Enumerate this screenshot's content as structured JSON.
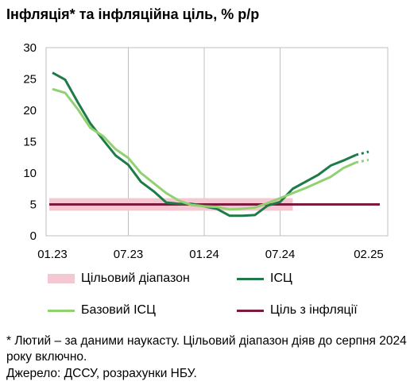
{
  "title": "Інфляція* та інфляційна ціль, % р/р",
  "legend": {
    "band": "Цільовий діапазон",
    "cpi": "ІСЦ",
    "core": "Базовий ІСЦ",
    "target": "Ціль з інфляції"
  },
  "note": "* Лютий – за даними наукасту. Цільовий діапазон діяв до серпня 2024 року включно.",
  "source": "Джерело: ДССУ, розрахунки НБУ.",
  "colors": {
    "cpi": "#1e7b47",
    "core": "#92d172",
    "band": "#f4c7d2",
    "target": "#7b1c3e"
  },
  "chart_data": {
    "type": "line",
    "x": [
      "01.23",
      "02.23",
      "03.23",
      "04.23",
      "05.23",
      "06.23",
      "07.23",
      "08.23",
      "09.23",
      "10.23",
      "11.23",
      "12.23",
      "01.24",
      "02.24",
      "03.24",
      "04.24",
      "05.24",
      "06.24",
      "07.24",
      "08.24",
      "09.24",
      "10.24",
      "11.24",
      "12.24",
      "01.25",
      "02.25"
    ],
    "x_ticks": [
      "01.23",
      "07.23",
      "01.24",
      "07.24",
      "02.25"
    ],
    "y_ticks": [
      "0",
      "5",
      "10",
      "15",
      "20",
      "25",
      "30"
    ],
    "ylim": [
      0,
      30
    ],
    "grid": "vertical",
    "series": [
      {
        "name": "ІСЦ",
        "values": [
          26.0,
          24.9,
          21.3,
          17.9,
          15.3,
          12.8,
          11.3,
          8.6,
          7.1,
          5.3,
          5.1,
          5.1,
          4.7,
          4.3,
          3.2,
          3.2,
          3.3,
          4.8,
          5.4,
          7.5,
          8.6,
          9.7,
          11.2,
          12.0,
          12.9,
          13.4
        ]
      },
      {
        "name": "Базовий ІСЦ",
        "values": [
          23.4,
          22.8,
          20.2,
          17.2,
          15.9,
          13.8,
          12.4,
          10.0,
          8.4,
          6.8,
          5.6,
          4.9,
          4.7,
          4.6,
          4.2,
          4.3,
          4.5,
          5.2,
          6.0,
          6.8,
          7.6,
          8.5,
          9.4,
          10.8,
          11.7,
          12.1
        ]
      }
    ],
    "nowcast_last_points": 1,
    "target": 5,
    "band": {
      "low": 4,
      "high": 6,
      "from": "01.23",
      "to": "08.24"
    }
  }
}
